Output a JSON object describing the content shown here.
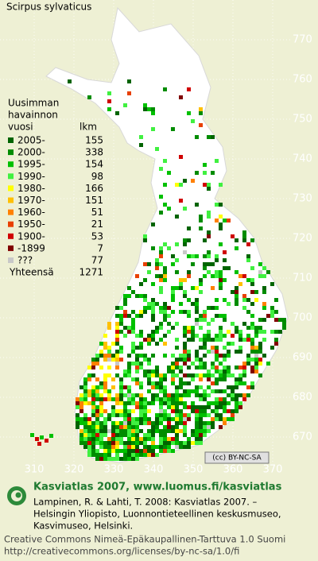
{
  "title": "Scirpus sylvaticus",
  "legend": {
    "heading": [
      "Uusimman",
      "havainnon",
      "vuosi"
    ],
    "count_heading": "lkm",
    "rows": [
      {
        "label": "2005-",
        "count": 155,
        "color": "#006400"
      },
      {
        "label": "2000-",
        "count": 338,
        "color": "#008c00"
      },
      {
        "label": "1995-",
        "count": 154,
        "color": "#00c000"
      },
      {
        "label": "1990-",
        "count": 98,
        "color": "#40f040"
      },
      {
        "label": "1980-",
        "count": 166,
        "color": "#ffff00"
      },
      {
        "label": "1970-",
        "count": 151,
        "color": "#ffc000"
      },
      {
        "label": "1960-",
        "count": 51,
        "color": "#ff8000"
      },
      {
        "label": "1950-",
        "count": 21,
        "color": "#e84000"
      },
      {
        "label": "1900-",
        "count": 53,
        "color": "#d00000"
      },
      {
        "label": "-1899",
        "count": 7,
        "color": "#800000"
      },
      {
        "label": "???",
        "count": 77,
        "color": "#c8c8c8"
      }
    ],
    "total_label": "Yhteensä",
    "total": 1271
  },
  "grid": {
    "northing_labels": [
      770,
      760,
      750,
      740,
      730,
      720,
      710,
      700,
      690,
      680,
      670
    ],
    "easting_labels": [
      310,
      320,
      330,
      340,
      350,
      360,
      370
    ]
  },
  "license_badge": "(cc) BY-NC-SA",
  "footer": {
    "site": "Kasviatlas 2007, www.luomus.fi/kasviatlas",
    "citation": [
      "Lampinen, R. & Lahti, T. 2008: Kasviatlas 2007. –",
      "Helsingin Yliopisto, Luonnontieteellinen keskusmuseo,",
      "Kasvimuseo, Helsinki."
    ],
    "license": [
      "Creative Commons Nimeä-Epäkaupallinen-Tarttuva 1.0 Suomi",
      "http://creativecommons.org/licenses/by-nc-sa/1.0/fi"
    ]
  }
}
